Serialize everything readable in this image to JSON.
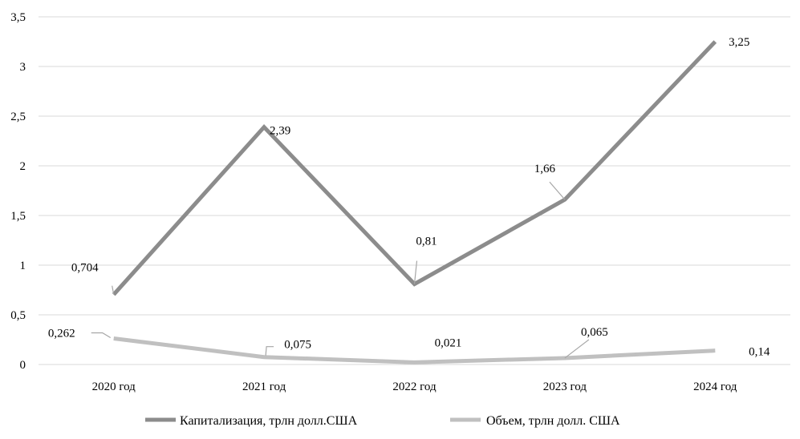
{
  "chart_data": {
    "type": "line",
    "title": "",
    "xlabel": "",
    "ylabel": "",
    "categories": [
      "2020 год",
      "2021 год",
      "2022 год",
      "2023 год",
      "2024 год"
    ],
    "ylim": [
      0,
      3.5
    ],
    "yticks": [
      0,
      0.5,
      1,
      1.5,
      2,
      2.5,
      3,
      3.5
    ],
    "ytick_labels": [
      "0",
      "0,5",
      "1",
      "1,5",
      "2",
      "2,5",
      "3",
      "3,5"
    ],
    "grid": true,
    "legend": "bottom",
    "series": [
      {
        "name": "Капитализация, трлн долл.США",
        "values": [
          0.704,
          2.39,
          0.81,
          1.66,
          3.25
        ],
        "labels": [
          "0,704",
          "2,39",
          "0,81",
          "1,66",
          "3,25"
        ],
        "color": "#8c8c8c"
      },
      {
        "name": "Объем, трлн долл. США",
        "values": [
          0.262,
          0.075,
          0.021,
          0.065,
          0.14
        ],
        "labels": [
          "0,262",
          "0,075",
          "0,021",
          "0,065",
          "0,14"
        ],
        "color": "#c0c0c0"
      }
    ]
  }
}
